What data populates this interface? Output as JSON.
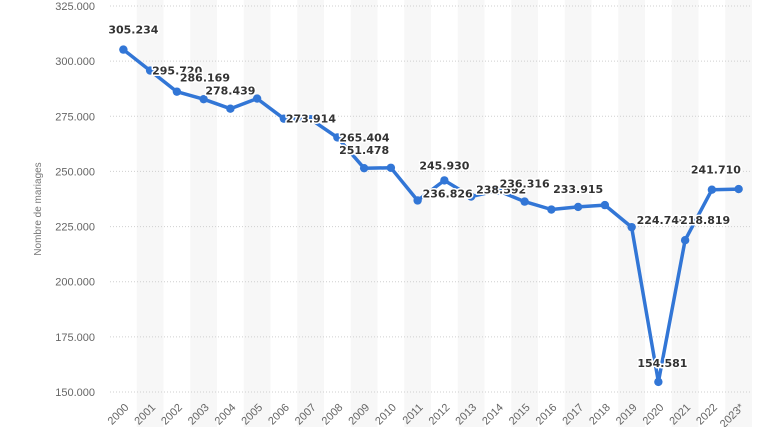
{
  "chart_data": {
    "type": "line",
    "title": "",
    "xlabel": "",
    "ylabel": "Nombre de mariages",
    "ylim": [
      150000,
      325000
    ],
    "yticks": [
      150000,
      175000,
      200000,
      225000,
      250000,
      275000,
      300000,
      325000
    ],
    "ytick_labels": [
      "150.000",
      "175.000",
      "200.000",
      "225.000",
      "250.000",
      "275.000",
      "300.000",
      "325.000"
    ],
    "grid": true,
    "line_color": "#3276d6",
    "categories": [
      "2000",
      "2001",
      "2002",
      "2003",
      "2004",
      "2005",
      "2006",
      "2007",
      "2008",
      "2009",
      "2010",
      "2011",
      "2012",
      "2013",
      "2014",
      "2015",
      "2016",
      "2017",
      "2018",
      "2019",
      "2020",
      "2021",
      "2022",
      "2023*"
    ],
    "values": [
      305234,
      295720,
      286169,
      282756,
      278439,
      283036,
      273914,
      273669,
      265404,
      251478,
      251654,
      236826,
      245930,
      238592,
      241292,
      236316,
      232725,
      233915,
      234735,
      224740,
      154581,
      218819,
      241710,
      242000
    ],
    "data_labels": [
      {
        "index": 0,
        "text": "305.234"
      },
      {
        "index": 1,
        "text": "295.720"
      },
      {
        "index": 2,
        "text": "286.169"
      },
      {
        "index": 4,
        "text": "278.439"
      },
      {
        "index": 6,
        "text": "273.914"
      },
      {
        "index": 8,
        "text": "265.404"
      },
      {
        "index": 9,
        "text": "251.478"
      },
      {
        "index": 11,
        "text": "236.826"
      },
      {
        "index": 12,
        "text": "245.930"
      },
      {
        "index": 13,
        "text": "238.592"
      },
      {
        "index": 15,
        "text": "236.316"
      },
      {
        "index": 17,
        "text": "233.915"
      },
      {
        "index": 19,
        "text": "224.740"
      },
      {
        "index": 20,
        "text": "154.581"
      },
      {
        "index": 21,
        "text": "218.819"
      },
      {
        "index": 22,
        "text": "241.710"
      }
    ]
  }
}
